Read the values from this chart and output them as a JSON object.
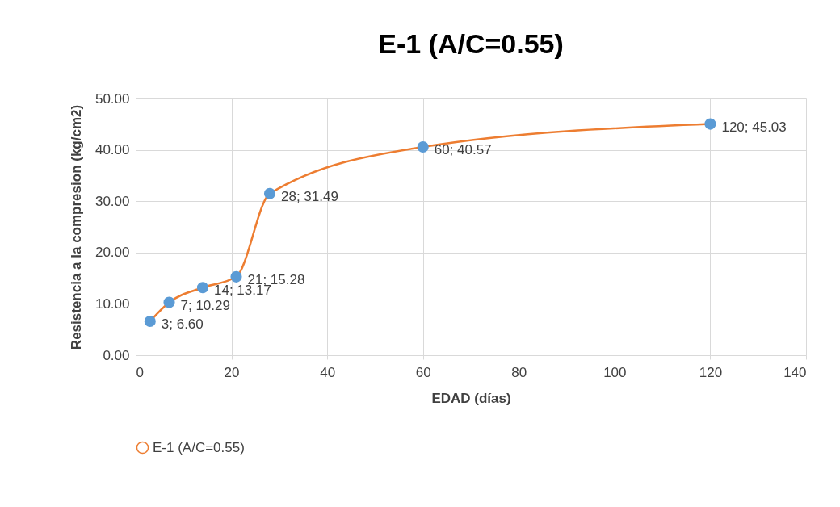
{
  "chart_data": {
    "type": "line",
    "title": "E-1  (A/C=0.55)",
    "xlabel": "EDAD (días)",
    "ylabel": "Resistencia a la compresion (kg/cm2)",
    "x": [
      3,
      7,
      14,
      21,
      28,
      60,
      120
    ],
    "series": [
      {
        "name": "E-1  (A/C=0.55)",
        "color": "#ed7d31",
        "colors": [
          "#5b9bd5",
          "#5b9bd5",
          "#5b9bd5",
          "#5b9bd5",
          "#5b9bd5",
          "#5b9bd5",
          "#5b9bd5"
        ],
        "values": [
          6.6,
          10.29,
          13.17,
          15.28,
          31.49,
          40.57,
          45.03
        ],
        "value_labels": [
          "3; 6.60",
          "7; 10.29",
          "14; 13.17",
          "21; 15.28",
          "28; 31.49",
          "60; 40.57",
          "120; 45.03"
        ]
      }
    ],
    "xlim": [
      0,
      140
    ],
    "xticks": [
      0,
      20,
      40,
      60,
      80,
      100,
      120,
      140
    ],
    "ylim": [
      0,
      50
    ],
    "yticks": [
      {
        "value": 0,
        "label": "0.00"
      },
      {
        "value": 10,
        "label": "10.00"
      },
      {
        "value": 20,
        "label": "20.00"
      },
      {
        "value": 30,
        "label": "30.00"
      },
      {
        "value": 40,
        "label": "40.00"
      },
      {
        "value": 50,
        "label": "50.00"
      }
    ],
    "grid": true,
    "legend": "bottom",
    "marker": "circle",
    "line_style": "solid"
  }
}
